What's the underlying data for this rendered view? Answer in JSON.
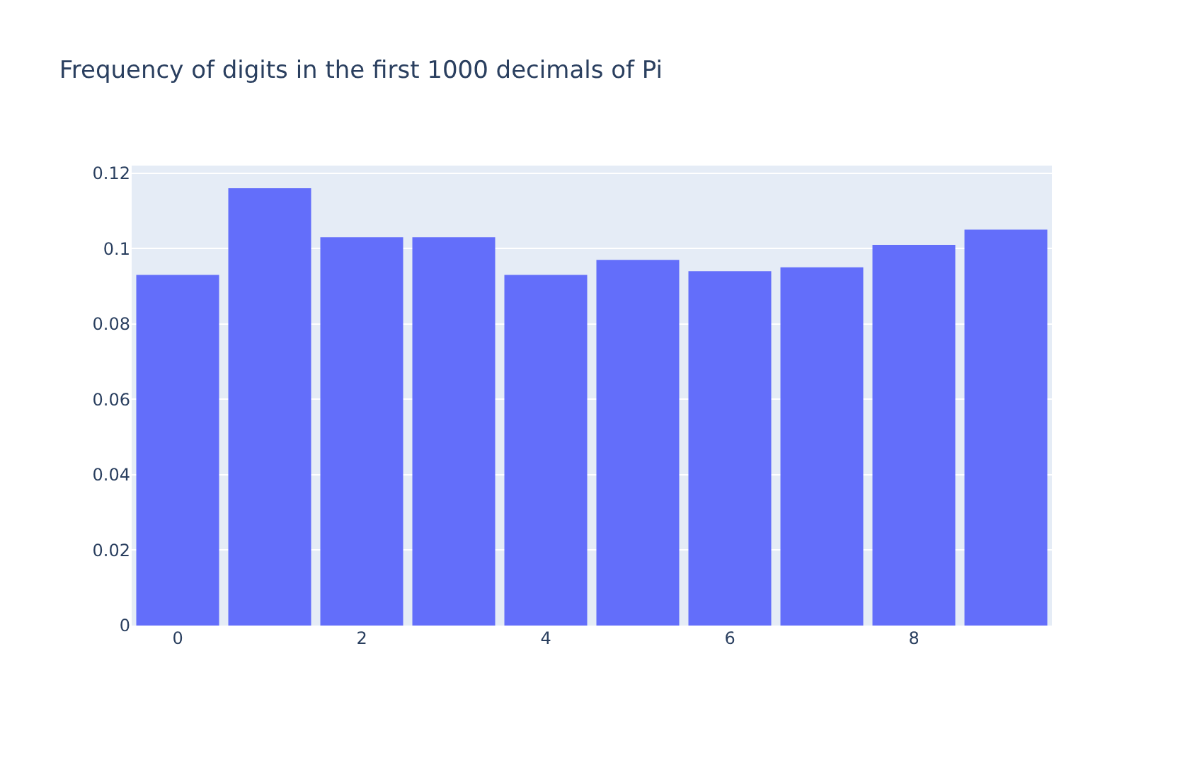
{
  "chart_data": {
    "type": "bar",
    "title": "Frequency of digits in the first 1000 decimals of Pi",
    "x": [
      0,
      1,
      2,
      3,
      4,
      5,
      6,
      7,
      8,
      9
    ],
    "values": [
      0.093,
      0.116,
      0.103,
      0.103,
      0.093,
      0.097,
      0.094,
      0.095,
      0.101,
      0.105
    ],
    "color": "#636efa",
    "xlim": [
      -0.5,
      9.5
    ],
    "xticks": [
      0,
      2,
      4,
      6,
      8
    ],
    "ylim": [
      0,
      0.122
    ],
    "yticks": [
      0,
      0.02,
      0.04,
      0.06,
      0.08,
      0.1,
      0.12
    ],
    "grid": "y"
  }
}
